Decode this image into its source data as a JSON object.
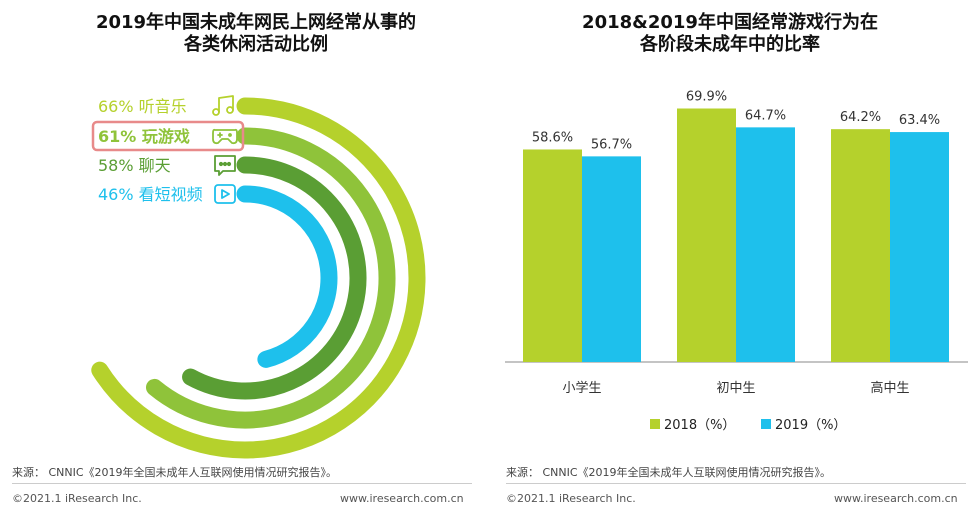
{
  "chart_data": [
    {
      "type": "radial-bar",
      "title": "2019年中国未成年网民上网经常从事的各类休闲活动比例",
      "title_lines": [
        "2019年中国未成年网民上网经常从事的",
        "各类休闲活动比例"
      ],
      "unit": "%",
      "items": [
        {
          "value": 66,
          "value_label": "66%",
          "label": "听音乐",
          "icon": "music-note-icon",
          "color": "#b5d12c",
          "highlighted": false
        },
        {
          "value": 61,
          "value_label": "61%",
          "label": "玩游戏",
          "icon": "gamepad-icon",
          "color": "#8fc33a",
          "highlighted": true
        },
        {
          "value": 58,
          "value_label": "58%",
          "label": "聊天",
          "icon": "chat-bubble-icon",
          "color": "#5a9e34",
          "highlighted": false
        },
        {
          "value": 46,
          "value_label": "46%",
          "label": "看短视频",
          "icon": "video-play-icon",
          "color": "#1ec0ec",
          "highlighted": false
        }
      ],
      "highlight_color": "#e88a8a"
    },
    {
      "type": "bar",
      "title": "2018&2019年中国经常游戏行为在各阶段未成年中的比率",
      "title_lines": [
        "2018&2019年中国经常游戏行为在",
        "各阶段未成年中的比率"
      ],
      "categories": [
        "小学生",
        "初中生",
        "高中生"
      ],
      "series": [
        {
          "name": "2018（%）",
          "color": "#b5d12c",
          "values": [
            58.6,
            69.9,
            64.2
          ],
          "labels": [
            "58.6%",
            "69.9%",
            "64.2%"
          ]
        },
        {
          "name": "2019（%）",
          "color": "#1ec0ec",
          "values": [
            56.7,
            64.7,
            63.4
          ],
          "labels": [
            "56.7%",
            "64.7%",
            "63.4%"
          ]
        }
      ],
      "ylim": [
        0,
        75
      ],
      "legend": "bottom",
      "grid": false
    }
  ],
  "footer": {
    "source_left": "来源： CNNIC《2019年全国未成年人互联网使用情况研究报告》。",
    "source_right": "来源： CNNIC《2019年全国未成年人互联网使用情况研究报告》。",
    "copyright_left": "©2021.1 iResearch Inc.",
    "copyright_right": "©2021.1 iResearch Inc.",
    "url_left": "www.iresearch.com.cn",
    "url_right": "www.iresearch.com.cn"
  }
}
